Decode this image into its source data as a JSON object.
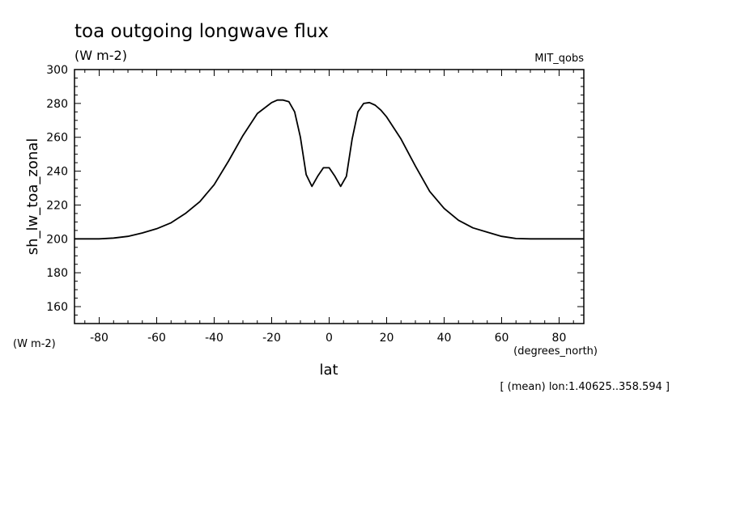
{
  "chart_data": {
    "type": "line",
    "title": "toa outgoing longwave flux",
    "subtitle": "(W m-2)",
    "source_label": "MIT_qobs",
    "ylabel": "sh_lw_toa_zonal",
    "yunits": "(W m-2)",
    "xlabel": "lat",
    "xunits": "(degrees_north)",
    "footnote": "[ (mean) lon:1.40625..358.594 ]",
    "xlim": [
      -88.6,
      88.6
    ],
    "ylim": [
      150,
      300
    ],
    "xticks": [
      -80,
      -60,
      -40,
      -20,
      0,
      20,
      40,
      60,
      80
    ],
    "xtick_labels": [
      "-80",
      "-60",
      "-40",
      "-20",
      "0",
      "20",
      "40",
      "60",
      "80"
    ],
    "yticks": [
      160,
      180,
      200,
      220,
      240,
      260,
      280,
      300
    ],
    "ytick_labels": [
      "160",
      "180",
      "200",
      "220",
      "240",
      "260",
      "280",
      "300"
    ],
    "grid": false,
    "legend": "none",
    "series": [
      {
        "x": [
          -88.6,
          -80,
          -75,
          -70,
          -65,
          -60,
          -55,
          -50,
          -45,
          -40,
          -35,
          -30,
          -25,
          -20,
          -18,
          -16,
          -14,
          -12,
          -10,
          -8,
          -6,
          -4,
          -2,
          0,
          2,
          4,
          6,
          8,
          10,
          12,
          14,
          16,
          18,
          20,
          25,
          30,
          35,
          40,
          45,
          50,
          55,
          60,
          65,
          70,
          75,
          80,
          85,
          88.6
        ],
        "y": [
          200,
          200,
          200.5,
          201.5,
          203.5,
          206,
          209.5,
          215,
          222,
          232,
          246,
          261,
          274,
          280.5,
          282,
          282,
          281,
          275,
          260,
          238,
          231,
          237,
          242,
          242,
          237,
          231,
          237,
          259,
          275,
          280,
          280.5,
          279,
          276,
          272,
          259,
          243,
          228,
          218,
          211,
          206.5,
          204,
          201.5,
          200.2,
          200,
          200,
          200,
          200,
          200
        ]
      }
    ],
    "line_color": "#000000"
  }
}
